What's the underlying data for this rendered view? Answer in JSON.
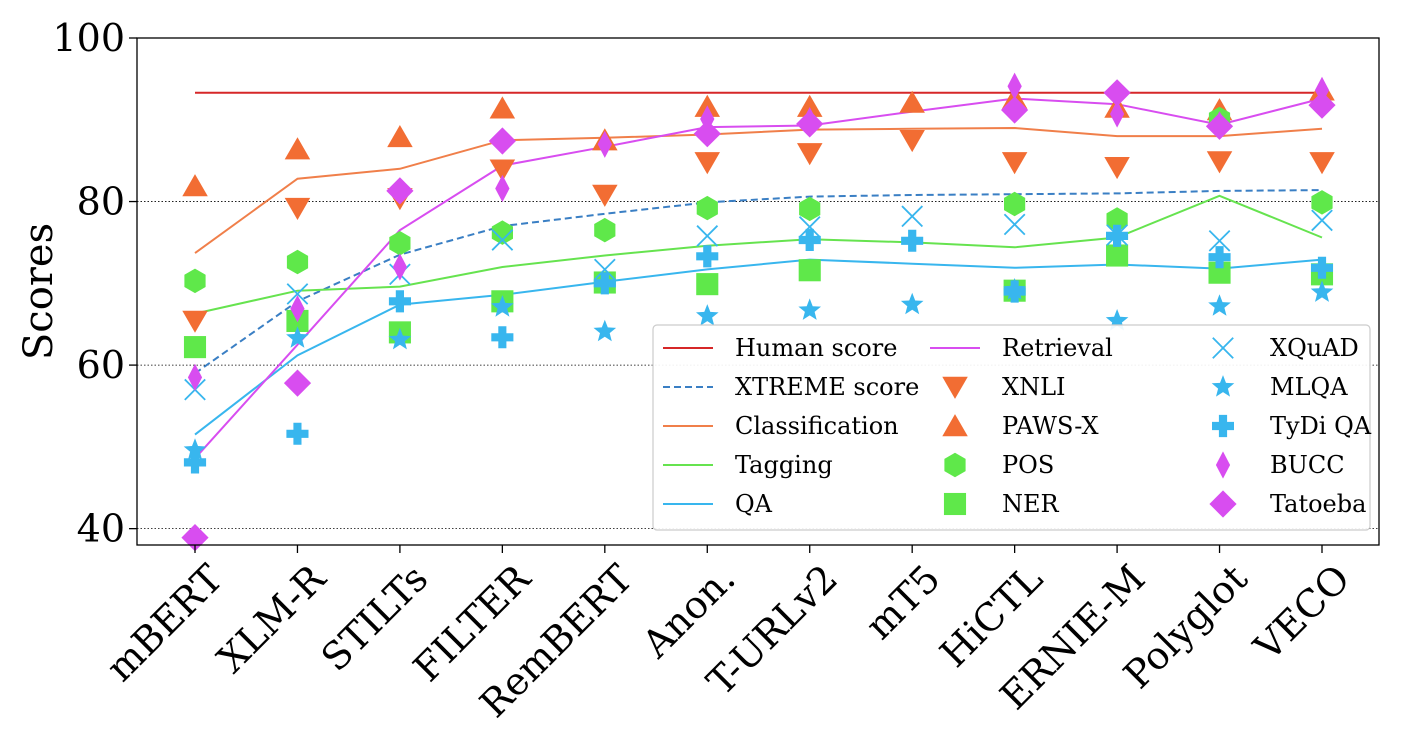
{
  "chart_data": {
    "type": "line",
    "title": "",
    "xlabel": "",
    "ylabel": "Scores",
    "ylim": [
      38,
      100
    ],
    "yticks": [
      40,
      60,
      80,
      100
    ],
    "grid": "y-only (dotted at 40, 60, 80)",
    "legend_position": "lower-right",
    "categories": [
      "mBERT",
      "XLM-R",
      "STILTs",
      "FILTER",
      "RemBERT",
      "Anon.",
      "T-URLv2",
      "mT5",
      "HiCTL",
      "ERNIE-M",
      "Polyglot",
      "VECO"
    ],
    "line_series": [
      {
        "name": "Human score",
        "color": "#d62728",
        "dash": "solid",
        "values": [
          93.3,
          93.3,
          93.3,
          93.3,
          93.3,
          93.3,
          93.3,
          93.3,
          93.3,
          93.3,
          93.3,
          93.3
        ]
      },
      {
        "name": "XTREME score",
        "color": "#3a7fc4",
        "dash": "dashed",
        "values": [
          59.0,
          67.8,
          73.5,
          77.0,
          78.5,
          79.9,
          80.6,
          80.8,
          80.9,
          81.0,
          81.3,
          81.4
        ]
      },
      {
        "name": "Classification",
        "color": "#f07f4a",
        "dash": "solid",
        "values": [
          73.7,
          82.8,
          84.0,
          87.5,
          87.8,
          88.2,
          88.8,
          88.9,
          89.0,
          88.0,
          88.0,
          88.9
        ]
      },
      {
        "name": "Tagging",
        "color": "#66e34f",
        "dash": "solid",
        "values": [
          66.3,
          69.1,
          69.6,
          72.0,
          73.4,
          74.6,
          75.4,
          75.0,
          74.4,
          75.6,
          80.7,
          75.6
        ]
      },
      {
        "name": "QA",
        "color": "#38b6ee",
        "dash": "solid",
        "values": [
          51.5,
          61.2,
          67.4,
          68.6,
          70.2,
          71.7,
          72.9,
          72.4,
          71.9,
          72.3,
          71.8,
          72.9
        ]
      },
      {
        "name": "Retrieval",
        "color": "#d84df0",
        "dash": "solid",
        "values": [
          48.6,
          62.5,
          76.5,
          84.4,
          86.7,
          89.1,
          89.3,
          91.0,
          92.6,
          91.9,
          89.4,
          92.6
        ]
      }
    ],
    "marker_series": [
      {
        "name": "XNLI",
        "color": "#f26d33",
        "marker": "triangle-down",
        "values": [
          65.4,
          79.2,
          80.4,
          83.9,
          80.8,
          84.8,
          85.9,
          87.5,
          84.8,
          84.2,
          84.9,
          84.8
        ]
      },
      {
        "name": "PAWS-X",
        "color": "#f26d33",
        "marker": "triangle-up",
        "values": [
          81.9,
          86.4,
          87.9,
          91.4,
          87.5,
          91.6,
          91.6,
          92.1,
          92.6,
          91.5,
          91.2,
          93.6
        ]
      },
      {
        "name": "POS",
        "color": "#5fe84a",
        "marker": "hexagon",
        "values": [
          70.3,
          72.6,
          74.9,
          76.2,
          76.5,
          79.2,
          79.1,
          null,
          79.7,
          77.8,
          90.1,
          79.9
        ]
      },
      {
        "name": "NER",
        "color": "#5fe84a",
        "marker": "square",
        "values": [
          62.2,
          65.4,
          64.0,
          67.8,
          70.1,
          69.9,
          71.6,
          null,
          69.1,
          73.4,
          71.3,
          71.1
        ]
      },
      {
        "name": "XQuAD",
        "color": "#38b6ee",
        "marker": "x",
        "values": [
          57.0,
          68.7,
          71.1,
          75.3,
          71.7,
          75.8,
          76.9,
          78.2,
          77.2,
          75.9,
          75.2,
          77.7
        ]
      },
      {
        "name": "MLQA",
        "color": "#38b6ee",
        "marker": "star",
        "values": [
          49.6,
          63.3,
          63.1,
          67.1,
          64.1,
          66.0,
          66.7,
          67.4,
          69.2,
          65.4,
          67.2,
          68.9
        ]
      },
      {
        "name": "TyDi QA",
        "color": "#38b6ee",
        "marker": "plus",
        "values": [
          48.1,
          51.6,
          67.8,
          63.4,
          70.0,
          73.3,
          75.3,
          75.2,
          69.0,
          75.8,
          73.2,
          71.9
        ]
      },
      {
        "name": "BUCC",
        "color": "#d84df0",
        "marker": "thin-diamond",
        "values": [
          58.5,
          66.9,
          72.0,
          81.6,
          87.0,
          90.1,
          89.9,
          null,
          94.1,
          90.7,
          89.4,
          93.6
        ]
      },
      {
        "name": "Tatoeba",
        "color": "#d84df0",
        "marker": "diamond",
        "values": [
          38.9,
          57.8,
          81.3,
          87.4,
          null,
          88.3,
          89.5,
          null,
          91.2,
          93.3,
          89.2,
          91.8
        ]
      }
    ]
  }
}
